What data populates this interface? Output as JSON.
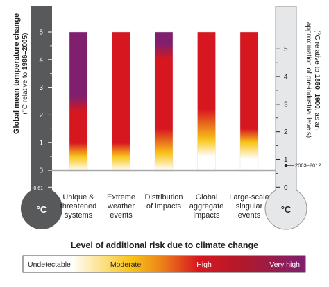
{
  "chart_data": {
    "type": "bar",
    "title": "Level of additional risk due to climate change",
    "y_left": {
      "label": "Global mean temperature change",
      "sublabel_prefix": "(°C relative to ",
      "sublabel_bold": "1986–2005",
      "sublabel_suffix": ")",
      "ticks": [
        "5",
        "4",
        "3",
        "2",
        "1",
        "0",
        "-0.61"
      ],
      "range": [
        -0.61,
        5
      ]
    },
    "y_right": {
      "label_prefix": "(°C relative to ",
      "label_bold": "1850–1900",
      "label_suffix": ", as an",
      "label_line2": "approximation of pre-industrial levels)",
      "ticks": [
        "5",
        "4",
        "3",
        "2",
        "1",
        "0"
      ],
      "range": [
        0,
        5.61
      ],
      "offset": 0.61
    },
    "thermometer_unit": "°C",
    "baseline_marker": {
      "label": "2003–2012",
      "value": 0.78
    },
    "categories": [
      {
        "label_lines": [
          "Unique &",
          "threatened",
          "systems"
        ]
      },
      {
        "label_lines": [
          "Extreme",
          "weather",
          "events"
        ]
      },
      {
        "label_lines": [
          "Distribution",
          "of impacts"
        ]
      },
      {
        "label_lines": [
          "Global",
          "aggregate",
          "impacts"
        ]
      },
      {
        "label_lines": [
          "Large-scale",
          "singular",
          "events"
        ]
      }
    ],
    "bars": [
      {
        "category": "Unique & threatened systems",
        "from": -0.61,
        "to": 5,
        "risk_transitions": {
          "undetectable_to_moderate": 0.1,
          "moderate_to_high": 1.0,
          "high_to_very_high": 2.1
        }
      },
      {
        "category": "Extreme weather events",
        "from": -0.61,
        "to": 5,
        "risk_transitions": {
          "undetectable_to_moderate": 0.1,
          "moderate_to_high": 1.0,
          "high_to_very_high": 5.0
        }
      },
      {
        "category": "Distribution of impacts",
        "from": -0.61,
        "to": 5,
        "risk_transitions": {
          "undetectable_to_moderate": 0.2,
          "moderate_to_high": 1.5,
          "high_to_very_high": 4.0
        }
      },
      {
        "category": "Global aggregate impacts",
        "from": -0.61,
        "to": 5,
        "risk_transitions": {
          "undetectable_to_moderate": 0.7,
          "moderate_to_high": 2.2,
          "high_to_very_high": 5.0
        }
      },
      {
        "category": "Large-scale singular events",
        "from": -0.61,
        "to": 5,
        "risk_transitions": {
          "undetectable_to_moderate": 0.6,
          "moderate_to_high": 1.5,
          "high_to_very_high": 5.0
        }
      }
    ],
    "legend": {
      "title": "Level of additional risk due to climate change",
      "items": [
        "Undetectable",
        "Moderate",
        "High",
        "Very high"
      ],
      "colors": {
        "undetectable": "#ffffff",
        "moderate": "#f9c51a",
        "high": "#d7171f",
        "very_high": "#7f1f6e"
      }
    },
    "colors": {
      "left_thermometer": "#58595b",
      "right_thermometer": "#e6e7e8",
      "gridline": "#a7a9ac",
      "bar_outline": "#cccccc"
    }
  }
}
